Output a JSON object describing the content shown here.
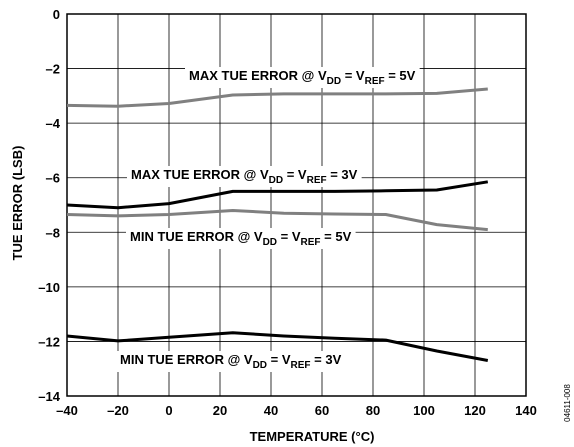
{
  "chart_data": {
    "type": "line",
    "xlabel": "TEMPERATURE (°C)",
    "ylabel": "TUE ERROR (LSB)",
    "xlim": [
      -40,
      140
    ],
    "ylim": [
      -14,
      0
    ],
    "x_ticks": [
      "–40",
      "–20",
      "0",
      "20",
      "40",
      "60",
      "80",
      "100",
      "120",
      "140"
    ],
    "y_ticks": [
      "0",
      "–2",
      "–4",
      "–6",
      "–8",
      "–10",
      "–12",
      "–14"
    ],
    "grid": true,
    "series": [
      {
        "name": "MAX TUE ERROR @ VDD = VREF = 5V",
        "color": "#808080",
        "x": [
          -40,
          -20,
          0,
          25,
          45,
          65,
          85,
          105,
          125
        ],
        "y": [
          -3.35,
          -3.38,
          -3.28,
          -2.97,
          -2.93,
          -2.93,
          -2.93,
          -2.91,
          -2.75
        ]
      },
      {
        "name": "MAX TUE ERROR @ VDD = VREF = 3V",
        "color": "#000000",
        "x": [
          -40,
          -20,
          0,
          25,
          45,
          65,
          85,
          105,
          125
        ],
        "y": [
          -7.0,
          -7.1,
          -6.95,
          -6.5,
          -6.5,
          -6.5,
          -6.48,
          -6.45,
          -6.15
        ]
      },
      {
        "name": "MIN TUE ERROR @ VDD = VREF = 5V",
        "color": "#808080",
        "x": [
          -40,
          -20,
          0,
          25,
          45,
          65,
          85,
          105,
          125
        ],
        "y": [
          -7.35,
          -7.4,
          -7.35,
          -7.2,
          -7.3,
          -7.33,
          -7.35,
          -7.72,
          -7.9
        ]
      },
      {
        "name": "MIN TUE ERROR @ VDD = VREF = 3V",
        "color": "#000000",
        "x": [
          -40,
          -20,
          0,
          25,
          45,
          65,
          85,
          105,
          125
        ],
        "y": [
          -11.8,
          -11.98,
          -11.85,
          -11.68,
          -11.8,
          -11.88,
          -11.95,
          -12.35,
          -12.7
        ]
      }
    ],
    "annotations": [
      {
        "series": 0,
        "parts": [
          "MAX TUE ERROR @ V",
          "DD",
          " = V",
          "REF",
          " = 5V"
        ]
      },
      {
        "series": 1,
        "parts": [
          "MAX TUE  ERROR @ V",
          "DD",
          " = V",
          "REF",
          " = 3V"
        ]
      },
      {
        "series": 2,
        "parts": [
          "MIN TUE ERROR @ V",
          "DD",
          " = V",
          "REF",
          " = 5V"
        ]
      },
      {
        "series": 3,
        "parts": [
          "MIN TUE ERROR @ V",
          "DD",
          " = V",
          "REF",
          " = 3V"
        ]
      }
    ],
    "figure_code": "04611-008"
  }
}
